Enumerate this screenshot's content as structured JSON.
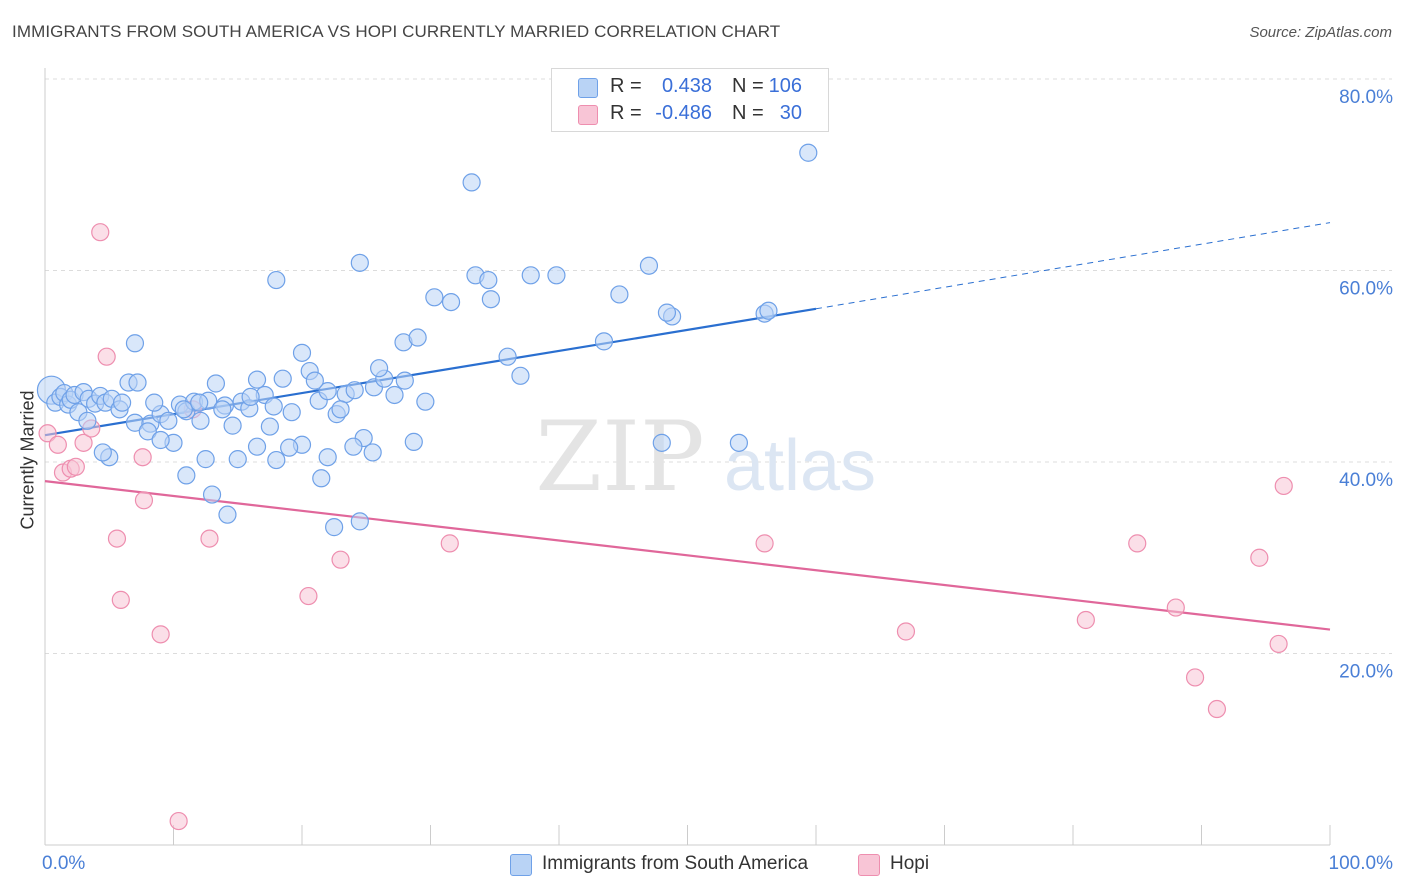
{
  "title": "IMMIGRANTS FROM SOUTH AMERICA VS HOPI CURRENTLY MARRIED CORRELATION CHART",
  "source": "Source: ZipAtlas.com",
  "watermark": {
    "zip": "ZIP",
    "atlas": "atlas"
  },
  "colors": {
    "blue": "#6fa1e8",
    "blue_fill": "#b9d3f5",
    "blue_line": "#2a6fd0",
    "pink": "#ee8eaf",
    "pink_fill": "#f8c5d6",
    "pink_line": "#e0679a",
    "grid": "#dcdcdc",
    "tick_text": "#4a7fd6"
  },
  "legend_top": {
    "rows": [
      {
        "r_label": "R =",
        "r_value": "0.438",
        "n_label": "N =",
        "n_value": "106"
      },
      {
        "r_label": "R =",
        "r_value": "-0.486",
        "n_label": "N =",
        "n_value": "30"
      }
    ]
  },
  "legend_bottom": {
    "items": [
      "Immigrants from South America",
      "Hopi"
    ]
  },
  "chart_data": {
    "type": "scatter",
    "title": "IMMIGRANTS FROM SOUTH AMERICA VS HOPI CURRENTLY MARRIED CORRELATION CHART",
    "xlabel": "",
    "ylabel": "Currently Married",
    "xlim": [
      0,
      100
    ],
    "ylim": [
      0,
      80
    ],
    "x_tick_labels": [
      "0.0%",
      "100.0%"
    ],
    "y_ticks": [
      20,
      40,
      60,
      80
    ],
    "y_tick_labels": [
      "20.0%",
      "40.0%",
      "60.0%",
      "80.0%"
    ],
    "grid": true,
    "legend_placement": "top-center",
    "series": [
      {
        "name": "Immigrants from South America",
        "r": 0.438,
        "n": 106,
        "trend": {
          "x0": 0,
          "y0": 42.8,
          "x1": 60,
          "y1": 56.0,
          "dashed_to_x": 100,
          "dashed_to_y": 65.0
        },
        "points": [
          [
            0.5,
            47.5
          ],
          [
            0.8,
            46.2
          ],
          [
            1.2,
            46.8
          ],
          [
            1.5,
            47.2
          ],
          [
            1.8,
            46.0
          ],
          [
            2.0,
            46.5
          ],
          [
            2.3,
            47.0
          ],
          [
            2.6,
            45.2
          ],
          [
            3.0,
            47.3
          ],
          [
            3.4,
            46.6
          ],
          [
            3.9,
            46.1
          ],
          [
            4.3,
            46.9
          ],
          [
            4.7,
            46.2
          ],
          [
            5.2,
            46.6
          ],
          [
            5.8,
            45.5
          ],
          [
            6.5,
            48.3
          ],
          [
            7.2,
            48.3
          ],
          [
            7.0,
            44.1
          ],
          [
            8.2,
            44.0
          ],
          [
            9.0,
            45.0
          ],
          [
            9.6,
            44.3
          ],
          [
            10.5,
            46.0
          ],
          [
            11.0,
            45.3
          ],
          [
            11.6,
            46.3
          ],
          [
            12.1,
            44.3
          ],
          [
            12.7,
            46.4
          ],
          [
            13.3,
            48.2
          ],
          [
            14.0,
            45.9
          ],
          [
            14.6,
            43.8
          ],
          [
            15.3,
            46.3
          ],
          [
            15.9,
            45.6
          ],
          [
            16.5,
            48.6
          ],
          [
            17.1,
            47.0
          ],
          [
            17.8,
            45.8
          ],
          [
            18.5,
            48.7
          ],
          [
            19.2,
            45.2
          ],
          [
            20.0,
            51.4
          ],
          [
            20.6,
            49.5
          ],
          [
            21.3,
            46.4
          ],
          [
            22.0,
            47.4
          ],
          [
            22.7,
            45.0
          ],
          [
            23.4,
            47.1
          ],
          [
            24.1,
            47.5
          ],
          [
            24.8,
            42.5
          ],
          [
            25.6,
            47.8
          ],
          [
            26.4,
            48.7
          ],
          [
            27.2,
            47.0
          ],
          [
            27.9,
            52.5
          ],
          [
            28.7,
            42.1
          ],
          [
            29.6,
            46.3
          ],
          [
            7.0,
            52.4
          ],
          [
            10.0,
            42.0
          ],
          [
            12.5,
            40.3
          ],
          [
            15.0,
            40.3
          ],
          [
            18.0,
            40.2
          ],
          [
            20.0,
            41.8
          ],
          [
            22.0,
            40.5
          ],
          [
            24.0,
            41.6
          ],
          [
            11.0,
            38.6
          ],
          [
            13.0,
            36.6
          ],
          [
            5.0,
            40.5
          ],
          [
            8.0,
            43.2
          ],
          [
            9.0,
            42.3
          ],
          [
            16.5,
            41.6
          ],
          [
            17.5,
            43.7
          ],
          [
            19.0,
            41.5
          ],
          [
            21.5,
            38.3
          ],
          [
            22.5,
            33.2
          ],
          [
            24.5,
            33.8
          ],
          [
            25.5,
            41.0
          ],
          [
            14.2,
            34.5
          ],
          [
            6.0,
            46.2
          ],
          [
            4.5,
            41.0
          ],
          [
            3.3,
            44.3
          ],
          [
            8.5,
            46.2
          ],
          [
            10.8,
            45.5
          ],
          [
            12.0,
            46.2
          ],
          [
            13.8,
            45.5
          ],
          [
            16.0,
            46.8
          ],
          [
            21.0,
            48.5
          ],
          [
            23.0,
            45.5
          ],
          [
            26.0,
            49.8
          ],
          [
            28.0,
            48.5
          ],
          [
            29.0,
            53.0
          ],
          [
            30.3,
            57.2
          ],
          [
            31.6,
            56.7
          ],
          [
            33.5,
            59.5
          ],
          [
            33.2,
            69.2
          ],
          [
            34.5,
            59.0
          ],
          [
            34.7,
            57.0
          ],
          [
            37.0,
            49.0
          ],
          [
            36.0,
            51.0
          ],
          [
            37.8,
            59.5
          ],
          [
            39.8,
            59.5
          ],
          [
            43.5,
            52.6
          ],
          [
            44.7,
            57.5
          ],
          [
            47.0,
            60.5
          ],
          [
            48.8,
            55.2
          ],
          [
            48.4,
            55.6
          ],
          [
            48.0,
            42.0
          ],
          [
            54.0,
            42.0
          ],
          [
            56.0,
            55.5
          ],
          [
            56.3,
            55.8
          ],
          [
            59.4,
            72.3
          ],
          [
            24.5,
            60.8
          ],
          [
            18.0,
            59.0
          ]
        ]
      },
      {
        "name": "Hopi",
        "r": -0.486,
        "n": 30,
        "trend": {
          "x0": 0,
          "y0": 38.0,
          "x1": 100,
          "y1": 22.5
        },
        "points": [
          [
            0.2,
            43.0
          ],
          [
            1.0,
            41.8
          ],
          [
            1.4,
            38.9
          ],
          [
            2.0,
            39.3
          ],
          [
            2.4,
            39.5
          ],
          [
            3.0,
            42.0
          ],
          [
            3.6,
            43.5
          ],
          [
            4.3,
            64.0
          ],
          [
            4.8,
            51.0
          ],
          [
            5.6,
            32.0
          ],
          [
            5.9,
            25.6
          ],
          [
            7.7,
            36.0
          ],
          [
            7.6,
            40.5
          ],
          [
            9.0,
            22.0
          ],
          [
            10.4,
            2.5
          ],
          [
            11.5,
            45.5
          ],
          [
            12.8,
            32.0
          ],
          [
            20.5,
            26.0
          ],
          [
            23.0,
            29.8
          ],
          [
            31.5,
            31.5
          ],
          [
            56.0,
            31.5
          ],
          [
            67.0,
            22.3
          ],
          [
            81.0,
            23.5
          ],
          [
            85.0,
            31.5
          ],
          [
            88.0,
            24.8
          ],
          [
            89.5,
            17.5
          ],
          [
            91.2,
            14.2
          ],
          [
            94.5,
            30.0
          ],
          [
            96.4,
            37.5
          ],
          [
            96.0,
            21.0
          ]
        ]
      }
    ]
  }
}
